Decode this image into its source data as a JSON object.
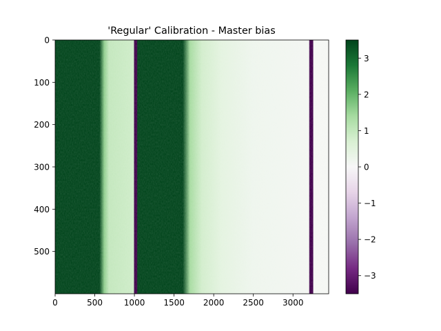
{
  "chart_data": {
    "type": "heatmap",
    "title": "'Regular' Calibration - Master bias",
    "xlabel": "",
    "ylabel": "",
    "xlim": [
      0,
      3450
    ],
    "ylim": [
      600,
      0
    ],
    "x_ticks": [
      0,
      500,
      1000,
      1500,
      2000,
      2500,
      3000
    ],
    "y_ticks": [
      0,
      100,
      200,
      300,
      400,
      500
    ],
    "colorbar": {
      "colormap": "PRGn",
      "range": [
        -3.5,
        3.5
      ],
      "ticks": [
        3,
        2,
        1,
        0,
        -1,
        -2,
        -3
      ],
      "tick_labels": [
        "3",
        "2",
        "1",
        "0",
        "−1",
        "−2",
        "−3"
      ]
    },
    "column_profile": [
      {
        "x": 0,
        "value": 3.5
      },
      {
        "x": 560,
        "value": 3.5
      },
      {
        "x": 620,
        "value": 1.6
      },
      {
        "x": 680,
        "value": 1.0
      },
      {
        "x": 990,
        "value": 0.85
      },
      {
        "x": 1000,
        "value": -3.5
      },
      {
        "x": 1030,
        "value": -3.5
      },
      {
        "x": 1040,
        "value": 3.5
      },
      {
        "x": 1610,
        "value": 3.5
      },
      {
        "x": 1700,
        "value": 1.4
      },
      {
        "x": 1850,
        "value": 0.8
      },
      {
        "x": 2100,
        "value": 0.45
      },
      {
        "x": 2500,
        "value": 0.2
      },
      {
        "x": 3200,
        "value": 0.1
      },
      {
        "x": 3210,
        "value": -3.5
      },
      {
        "x": 3250,
        "value": -3.5
      },
      {
        "x": 3260,
        "value": 0.05
      },
      {
        "x": 3450,
        "value": 0.05
      }
    ]
  }
}
